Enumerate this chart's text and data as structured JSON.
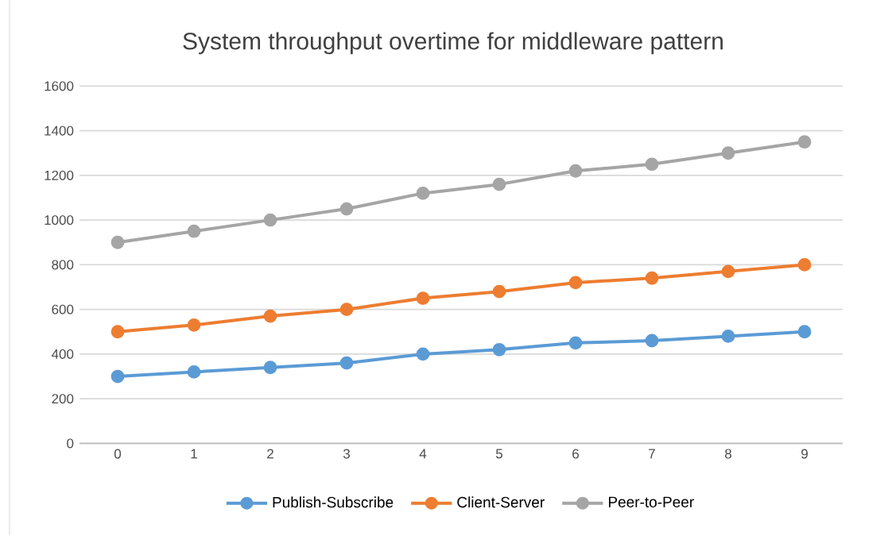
{
  "chart_data": {
    "type": "line",
    "title": "System throughput overtime for middleware pattern",
    "categories": [
      "0",
      "1",
      "2",
      "3",
      "4",
      "5",
      "6",
      "7",
      "8",
      "9"
    ],
    "series": [
      {
        "name": "Publish-Subscribe",
        "color": "#5b9bd5",
        "values": [
          300,
          320,
          340,
          360,
          400,
          420,
          450,
          460,
          480,
          500
        ]
      },
      {
        "name": "Client-Server",
        "color": "#ed7d31",
        "values": [
          500,
          530,
          570,
          600,
          650,
          680,
          720,
          740,
          770,
          800
        ]
      },
      {
        "name": "Peer-to-Peer",
        "color": "#a5a5a5",
        "values": [
          900,
          950,
          1000,
          1050,
          1120,
          1160,
          1220,
          1250,
          1300,
          1350
        ]
      }
    ],
    "ylim": [
      0,
      1600
    ],
    "yticks": [
      0,
      200,
      400,
      600,
      800,
      1000,
      1200,
      1400,
      1600
    ],
    "grid": "y",
    "legend": "bottom",
    "marker": "circle"
  }
}
